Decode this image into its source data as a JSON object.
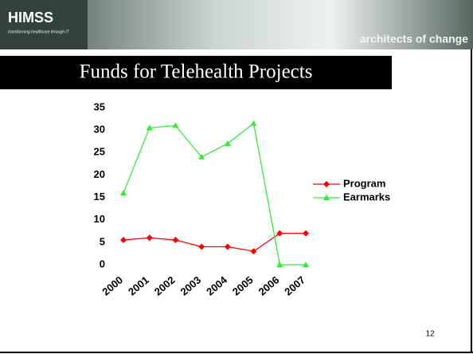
{
  "header": {
    "logo": "HIMSS",
    "tagline": "transforming healthcare through IT",
    "motto": "architects of change"
  },
  "chart_data": {
    "type": "line",
    "title": "Funds for Telehealth Projects",
    "categories": [
      "2000",
      "2001",
      "2002",
      "2003",
      "2004",
      "2005",
      "2006",
      "2007"
    ],
    "series": [
      {
        "name": "Program",
        "color": "#ff0000",
        "marker": "diamond",
        "values": [
          5.5,
          6,
          5.5,
          4,
          4,
          3,
          7,
          7
        ]
      },
      {
        "name": "Earmarks",
        "color": "#33ee33",
        "marker": "triangle",
        "values": [
          16,
          30.5,
          31,
          24,
          27,
          31.5,
          0,
          0
        ]
      }
    ],
    "ylim": [
      0,
      35
    ],
    "yticks": [
      0,
      5,
      10,
      15,
      20,
      25,
      30,
      35
    ],
    "grid": false,
    "legend": "right"
  },
  "page_number": "12"
}
